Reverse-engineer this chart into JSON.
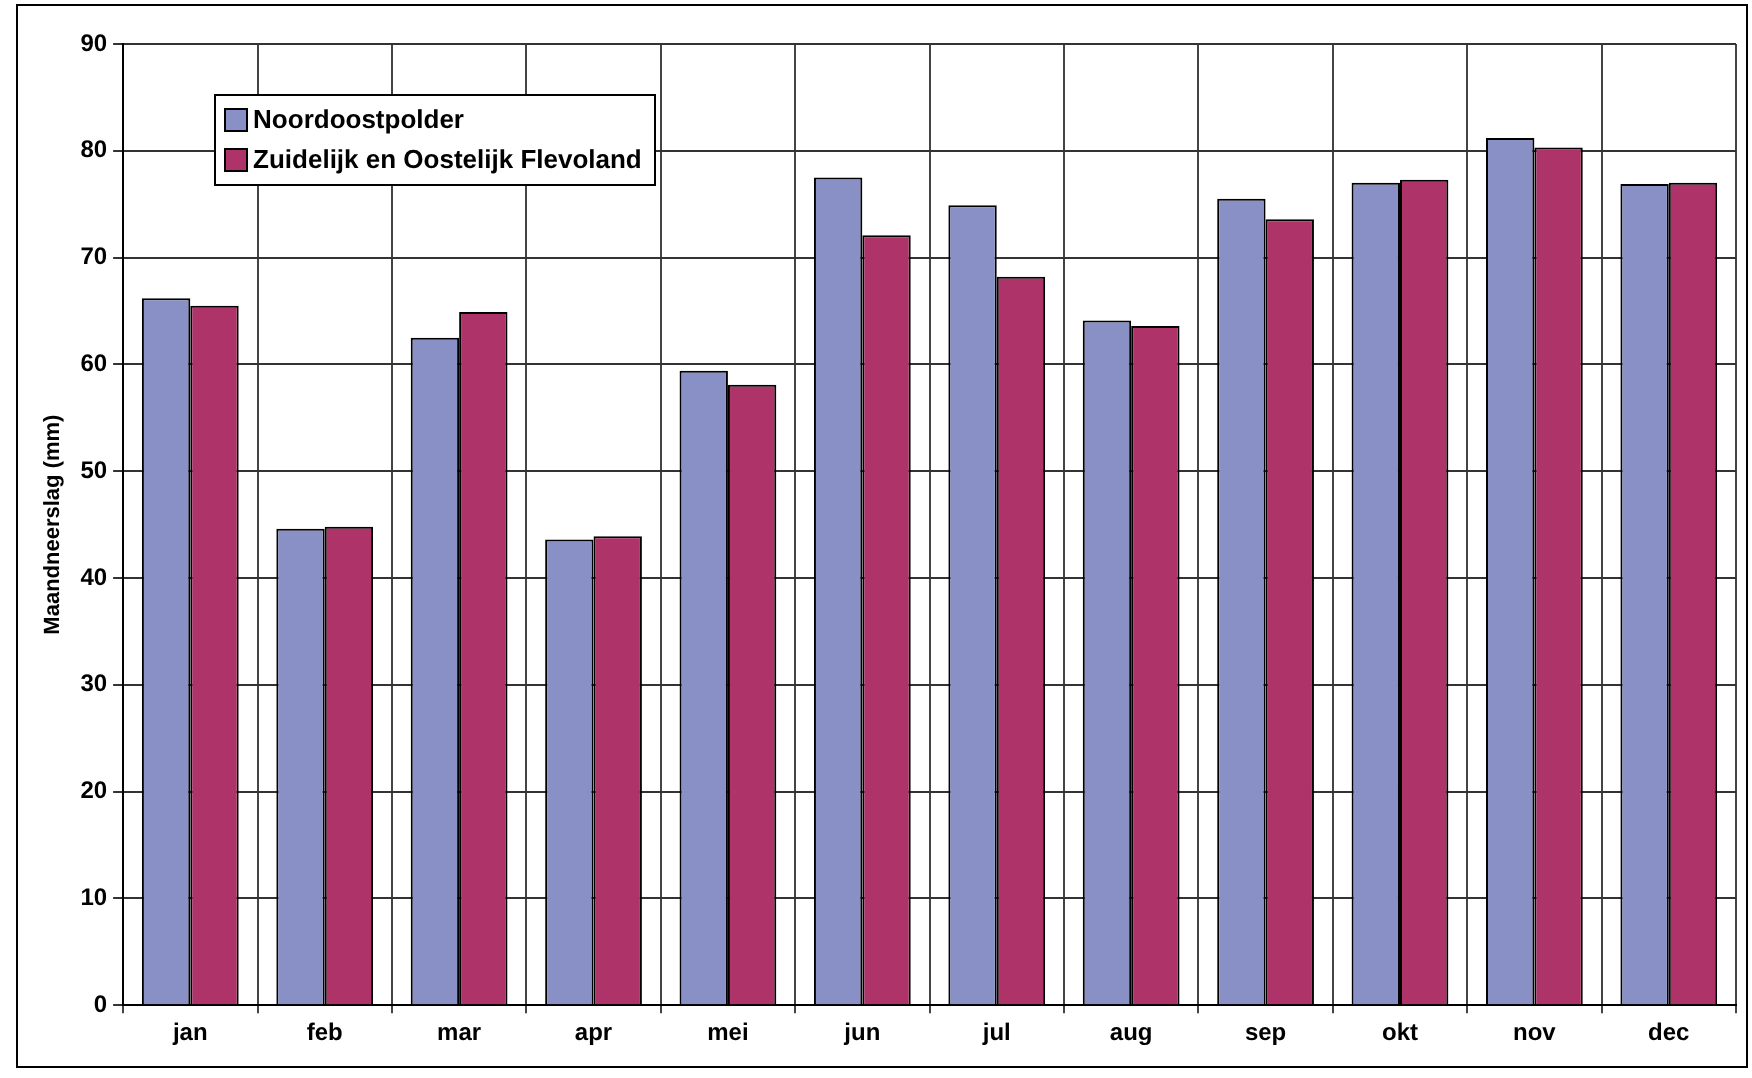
{
  "chart_data": {
    "type": "bar",
    "ylabel": "Maandneerslag (mm)",
    "categories": [
      "jan",
      "feb",
      "mar",
      "apr",
      "mei",
      "jun",
      "jul",
      "aug",
      "sep",
      "okt",
      "nov",
      "dec"
    ],
    "series": [
      {
        "name": "Noordoostpolder",
        "color": "#8890c6",
        "values": [
          66.2,
          44.6,
          62.5,
          43.6,
          59.4,
          77.5,
          74.9,
          64.1,
          75.5,
          77.0,
          81.2,
          76.9
        ]
      },
      {
        "name": "Zuidelijk en Oostelijk Flevoland",
        "color": "#ad3369",
        "values": [
          65.5,
          44.8,
          64.9,
          43.9,
          58.1,
          72.1,
          68.2,
          63.6,
          73.6,
          77.3,
          80.3,
          77.0
        ]
      }
    ],
    "ylim": [
      0,
      90
    ],
    "yticks": [
      0,
      10,
      20,
      30,
      40,
      50,
      60,
      70,
      80,
      90
    ],
    "grid": true,
    "legend": "top left"
  }
}
